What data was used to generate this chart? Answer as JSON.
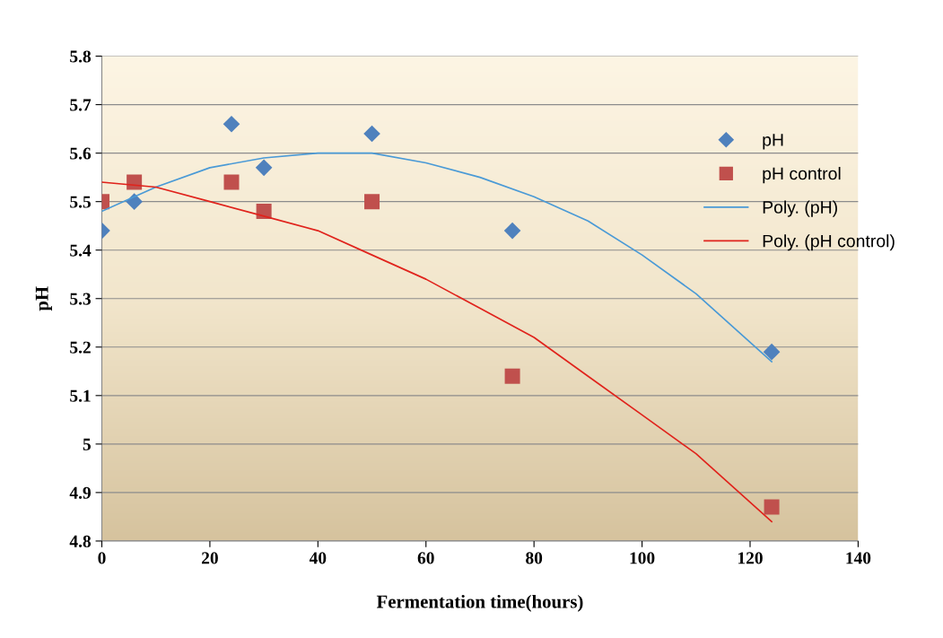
{
  "chart_data": {
    "type": "scatter",
    "xlabel": "Fermentation time(hours)",
    "ylabel": "pH",
    "xlim": [
      0,
      140
    ],
    "xticks": [
      0,
      20,
      40,
      60,
      80,
      100,
      120,
      140
    ],
    "ylim": [
      4.8,
      5.8
    ],
    "yticks": [
      4.8,
      4.9,
      {
        "value": 5.0,
        "label": "5"
      },
      5.1,
      5.2,
      5.3,
      5.4,
      5.5,
      5.6,
      5.7,
      5.8
    ],
    "grid": "y",
    "legend": "right",
    "series": [
      {
        "name": "pH",
        "marker": "diamond",
        "color": "#4f81bd",
        "x": [
          0,
          6,
          24,
          30,
          50,
          76,
          124
        ],
        "values": [
          5.44,
          5.5,
          5.66,
          5.57,
          5.64,
          5.44,
          5.19
        ]
      },
      {
        "name": "pH control",
        "marker": "square",
        "color": "#c0504d",
        "x": [
          0,
          6,
          24,
          30,
          50,
          76,
          124
        ],
        "values": [
          5.5,
          5.54,
          5.54,
          5.48,
          5.5,
          5.14,
          4.87
        ]
      },
      {
        "name": "Poly. (pH)",
        "type": "line",
        "marker": "none",
        "color": "#4a9ad6",
        "x": [
          0,
          10,
          20,
          30,
          40,
          50,
          60,
          70,
          80,
          90,
          100,
          110,
          124
        ],
        "values": [
          5.48,
          5.53,
          5.57,
          5.59,
          5.6,
          5.6,
          5.58,
          5.55,
          5.51,
          5.46,
          5.39,
          5.31,
          5.17
        ]
      },
      {
        "name": "Poly. (pH control)",
        "type": "line",
        "marker": "none",
        "color": "#e0231c",
        "x": [
          0,
          10,
          20,
          30,
          40,
          50,
          60,
          70,
          80,
          90,
          100,
          110,
          124
        ],
        "values": [
          5.54,
          5.53,
          5.5,
          5.47,
          5.44,
          5.39,
          5.34,
          5.28,
          5.22,
          5.14,
          5.06,
          4.98,
          4.84
        ]
      }
    ]
  }
}
